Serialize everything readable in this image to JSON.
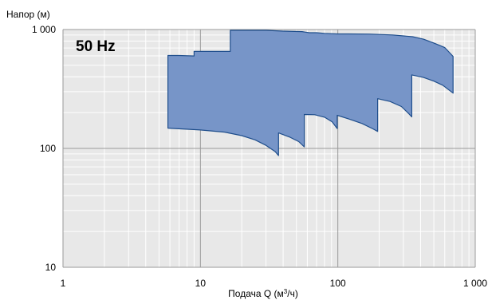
{
  "chart_data": {
    "type": "area",
    "x_scale": "log",
    "y_scale": "log",
    "xlim": [
      1,
      1000
    ],
    "ylim": [
      10,
      1000
    ],
    "ylabel": "Напор (м)",
    "xlabel_main": "Подача Q (м",
    "xlabel_sup": "3",
    "xlabel_tail": "/ч)",
    "x_tick_labels": [
      "1",
      "10",
      "100",
      "1 000"
    ],
    "y_tick_labels": [
      "1 000",
      "100",
      "10"
    ],
    "x_ticks": [
      1,
      10,
      100,
      1000
    ],
    "y_ticks": [
      1000,
      100,
      10
    ],
    "badge": "50 Hz",
    "grid": true,
    "colors": {
      "plot_background": "#e8e8e8",
      "grid_minor": "#ffffff",
      "grid_major": "#9a9a9a",
      "fill": "#7795c8",
      "outline": "#1f4e8c"
    },
    "envelope": {
      "name": "",
      "points": [
        [
          5.8,
          148
        ],
        [
          10,
          143
        ],
        [
          15,
          137
        ],
        [
          20,
          128
        ],
        [
          25,
          118
        ],
        [
          30,
          106
        ],
        [
          35,
          94
        ],
        [
          37,
          87
        ],
        [
          37,
          135
        ],
        [
          45,
          124
        ],
        [
          52,
          114
        ],
        [
          57,
          103
        ],
        [
          57,
          193
        ],
        [
          68,
          192
        ],
        [
          80,
          183
        ],
        [
          91,
          167
        ],
        [
          99,
          147
        ],
        [
          99,
          190
        ],
        [
          120,
          177
        ],
        [
          150,
          162
        ],
        [
          180,
          146
        ],
        [
          195,
          139
        ],
        [
          195,
          262
        ],
        [
          240,
          248
        ],
        [
          290,
          225
        ],
        [
          330,
          195
        ],
        [
          345,
          184
        ],
        [
          345,
          415
        ],
        [
          420,
          395
        ],
        [
          500,
          368
        ],
        [
          580,
          340
        ],
        [
          690,
          292
        ],
        [
          690,
          595
        ],
        [
          600,
          705
        ],
        [
          500,
          770
        ],
        [
          420,
          830
        ],
        [
          350,
          870
        ],
        [
          250,
          900
        ],
        [
          170,
          915
        ],
        [
          120,
          918
        ],
        [
          99,
          918
        ],
        [
          80,
          928
        ],
        [
          70,
          940
        ],
        [
          62,
          940
        ],
        [
          55,
          960
        ],
        [
          40,
          970
        ],
        [
          30,
          985
        ],
        [
          20,
          985
        ],
        [
          16.5,
          985
        ],
        [
          16.5,
          655
        ],
        [
          12,
          655
        ],
        [
          9,
          655
        ],
        [
          9,
          600
        ],
        [
          7,
          605
        ],
        [
          5.8,
          605
        ]
      ]
    }
  }
}
